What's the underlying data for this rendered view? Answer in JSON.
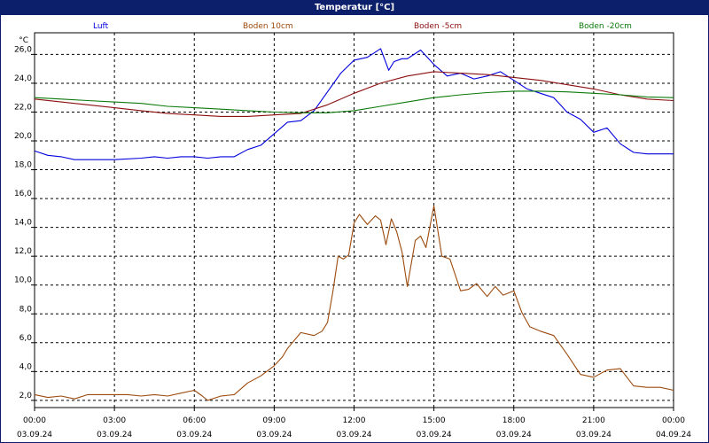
{
  "window": {
    "title": "Temperatur [°C]"
  },
  "chart_data": {
    "type": "line",
    "title": "Temperatur [°C]",
    "ylabel": "°C",
    "xlabel": "",
    "ylim": [
      1.5,
      27.5
    ],
    "xlim": [
      0,
      24
    ],
    "y_ticks": [
      "2,0",
      "4,0",
      "6,0",
      "8,0",
      "10,0",
      "12,0",
      "14,0",
      "16,0",
      "18,0",
      "20,0",
      "22,0",
      "24,0",
      "26,0"
    ],
    "y_tick_values": [
      2,
      4,
      6,
      8,
      10,
      12,
      14,
      16,
      18,
      20,
      22,
      24,
      26
    ],
    "x_ticks": [
      {
        "time": "00:00",
        "date": "03.09.24"
      },
      {
        "time": "03:00",
        "date": "03.09.24"
      },
      {
        "time": "06:00",
        "date": "03.09.24"
      },
      {
        "time": "09:00",
        "date": "03.09.24"
      },
      {
        "time": "12:00",
        "date": "03.09.24"
      },
      {
        "time": "15:00",
        "date": "03.09.24"
      },
      {
        "time": "18:00",
        "date": "03.09.24"
      },
      {
        "time": "21:00",
        "date": "03.09.24"
      },
      {
        "time": "00:00",
        "date": "04.09.24"
      }
    ],
    "x_tick_values": [
      0,
      3,
      6,
      9,
      12,
      15,
      18,
      21,
      24
    ],
    "grid": true,
    "legend_position": "top",
    "series": [
      {
        "name": "Luft",
        "color": "#0000dd",
        "x": [
          0,
          0.5,
          1,
          1.5,
          2,
          3,
          4,
          4.5,
          5,
          5.5,
          6,
          6.5,
          7,
          7.5,
          8,
          8.5,
          9,
          9.5,
          10,
          10.5,
          11,
          11.5,
          12,
          12.5,
          13,
          13.3,
          13.5,
          13.8,
          14,
          14.5,
          15,
          15.5,
          16,
          16.5,
          17,
          17.5,
          18,
          18.5,
          19,
          19.5,
          20,
          20.5,
          21,
          21.5,
          22,
          22.5,
          23,
          23.5,
          24
        ],
        "y": [
          19.3,
          19.0,
          18.9,
          18.7,
          18.7,
          18.7,
          18.8,
          18.9,
          18.8,
          18.9,
          18.9,
          18.8,
          18.9,
          18.9,
          19.4,
          19.7,
          20.5,
          21.3,
          21.4,
          22.1,
          23.4,
          24.7,
          25.6,
          25.8,
          26.4,
          24.9,
          25.5,
          25.7,
          25.7,
          26.3,
          25.3,
          24.5,
          24.7,
          24.3,
          24.5,
          24.8,
          24.2,
          23.6,
          23.3,
          23.0,
          22.0,
          21.5,
          20.6,
          20.9,
          19.8,
          19.2,
          19.1,
          19.1,
          19.1
        ]
      },
      {
        "name": "Boden 10cm",
        "color": "#9c4a0c",
        "x": [
          0,
          0.5,
          1,
          1.5,
          2,
          2.5,
          3,
          3.5,
          4,
          4.5,
          5,
          5.5,
          6,
          6.3,
          6.5,
          7,
          7.5,
          8,
          8.5,
          9,
          9.3,
          9.5,
          10,
          10.5,
          10.8,
          11,
          11.2,
          11.4,
          11.6,
          11.8,
          12,
          12.2,
          12.5,
          12.8,
          13,
          13.2,
          13.4,
          13.6,
          13.8,
          14,
          14.3,
          14.5,
          14.7,
          15,
          15.3,
          15.6,
          16,
          16.3,
          16.6,
          17,
          17.3,
          17.6,
          18,
          18.3,
          18.6,
          19,
          19.5,
          20,
          20.5,
          21,
          21.5,
          22,
          22.5,
          23,
          23.5,
          24
        ],
        "y": [
          2.4,
          2.2,
          2.3,
          2.1,
          2.4,
          2.4,
          2.4,
          2.4,
          2.3,
          2.4,
          2.3,
          2.5,
          2.7,
          2.3,
          2.0,
          2.3,
          2.4,
          3.2,
          3.7,
          4.4,
          5.0,
          5.6,
          6.7,
          6.5,
          6.8,
          7.4,
          9.5,
          12.0,
          11.8,
          12.1,
          14.3,
          14.9,
          14.2,
          14.8,
          14.5,
          12.8,
          14.6,
          13.7,
          12.3,
          9.9,
          13.1,
          13.4,
          12.6,
          15.5,
          12.0,
          11.8,
          9.6,
          9.7,
          10.1,
          9.2,
          9.9,
          9.3,
          9.6,
          8.1,
          7.1,
          6.8,
          6.5,
          5.2,
          3.8,
          3.6,
          4.1,
          4.2,
          3.0,
          2.9,
          2.9,
          2.7
        ]
      },
      {
        "name": "Boden -5cm",
        "color": "#8b0f0f",
        "x": [
          0,
          1,
          2,
          3,
          4,
          5,
          6,
          7,
          8,
          9,
          10,
          11,
          12,
          13,
          14,
          15,
          16,
          17,
          18,
          19,
          20,
          21,
          22,
          23,
          24
        ],
        "y": [
          22.9,
          22.7,
          22.5,
          22.3,
          22.1,
          21.9,
          21.8,
          21.7,
          21.7,
          21.8,
          21.9,
          22.5,
          23.3,
          24.0,
          24.5,
          24.8,
          24.7,
          24.6,
          24.4,
          24.2,
          23.9,
          23.6,
          23.2,
          22.9,
          22.8
        ]
      },
      {
        "name": "Boden -20cm",
        "color": "#0a7a0a",
        "x": [
          0,
          1,
          2,
          3,
          4,
          5,
          6,
          7,
          8,
          9,
          10,
          11,
          12,
          13,
          14,
          15,
          16,
          17,
          18,
          19,
          20,
          21,
          22,
          23,
          24
        ],
        "y": [
          23.0,
          22.9,
          22.8,
          22.7,
          22.6,
          22.4,
          22.3,
          22.2,
          22.1,
          22.0,
          21.95,
          21.95,
          22.1,
          22.4,
          22.7,
          23.0,
          23.2,
          23.35,
          23.45,
          23.45,
          23.4,
          23.3,
          23.2,
          23.05,
          23.0
        ]
      }
    ]
  }
}
